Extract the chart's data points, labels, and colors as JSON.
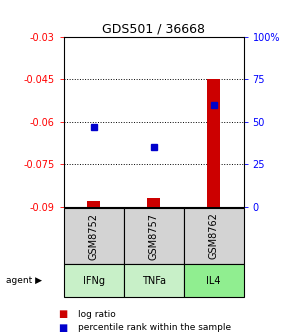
{
  "title": "GDS501 / 36668",
  "samples": [
    "GSM8752",
    "GSM8757",
    "GSM8762"
  ],
  "agents": [
    "IFNg",
    "TNFa",
    "IL4"
  ],
  "log_ratios": [
    -0.088,
    -0.087,
    -0.045
  ],
  "percentile_ranks": [
    47,
    35,
    60
  ],
  "ylim_left": [
    -0.09,
    -0.03
  ],
  "ylim_right": [
    0,
    100
  ],
  "yticks_left": [
    -0.09,
    -0.075,
    -0.06,
    -0.045,
    -0.03
  ],
  "yticks_right": [
    0,
    25,
    50,
    75,
    100
  ],
  "ytick_labels_left": [
    "-0.09",
    "-0.075",
    "-0.06",
    "-0.045",
    "-0.03"
  ],
  "ytick_labels_right": [
    "0",
    "25",
    "50",
    "75",
    "100%"
  ],
  "bar_color": "#cc0000",
  "dot_color": "#0000cc",
  "agent_colors": [
    "#c8f0c8",
    "#c8f0c8",
    "#90ee90"
  ],
  "sample_bg": "#d3d3d3",
  "title_fontsize": 9,
  "tick_fontsize": 7,
  "legend_fontsize": 6.5,
  "label_fontsize": 7
}
